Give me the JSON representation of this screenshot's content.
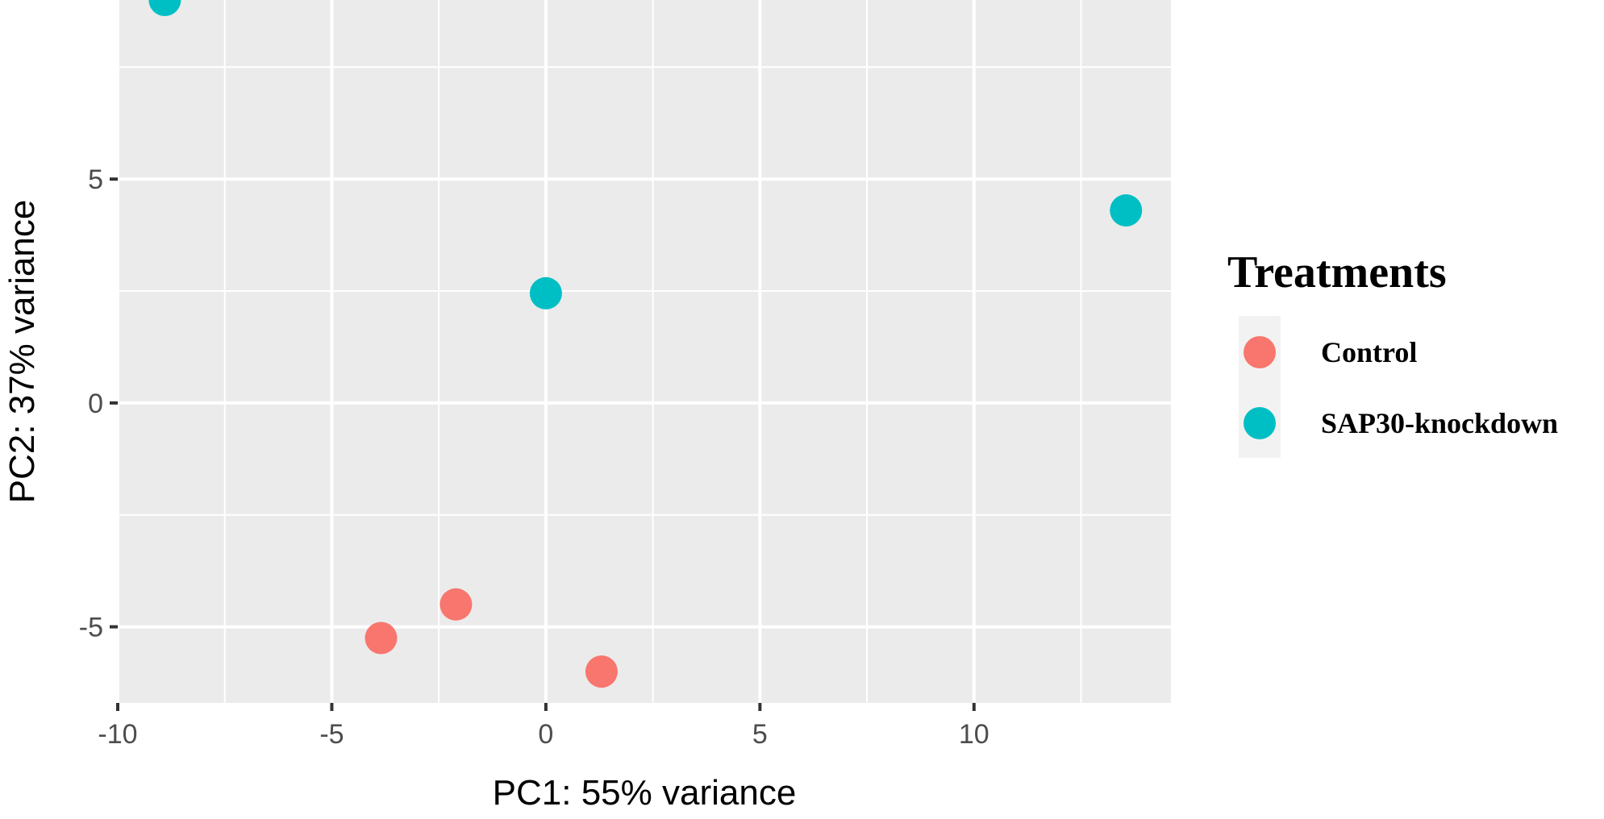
{
  "chart_data": {
    "type": "scatter",
    "title": "",
    "xlabel": "PC1: 55% variance",
    "ylabel": "PC2: 37% variance",
    "xlim": [
      -10,
      14.6
    ],
    "ylim": [
      -6.7,
      9.0
    ],
    "x_major_ticks": [
      -10,
      -5,
      0,
      5,
      10
    ],
    "x_tick_labels": [
      "-10",
      "-5",
      "0",
      "5",
      "10"
    ],
    "y_major_ticks": [
      -5,
      0,
      5
    ],
    "y_tick_labels": [
      "-5",
      "0",
      "5"
    ],
    "x_minor_ticks": [
      -7.5,
      -2.5,
      2.5,
      7.5,
      12.5
    ],
    "y_minor_ticks": [
      -2.5,
      2.5,
      7.5
    ],
    "grid": true,
    "legend": {
      "title": "Treatments",
      "placement": "right"
    },
    "series": [
      {
        "name": "Control",
        "color": "#F8766D",
        "points": [
          {
            "x": -3.85,
            "y": -5.25
          },
          {
            "x": -2.1,
            "y": -4.5
          },
          {
            "x": 1.3,
            "y": -6.0
          }
        ]
      },
      {
        "name": "SAP30-knockdown",
        "color": "#00BFC4",
        "points": [
          {
            "x": -8.9,
            "y": 9.0
          },
          {
            "x": 0.0,
            "y": 2.45
          },
          {
            "x": 13.55,
            "y": 4.3
          }
        ]
      }
    ],
    "panel_background": "#EBEBEB",
    "grid_color": "#FFFFFF",
    "legend_key_background": "#F2F2F2"
  }
}
